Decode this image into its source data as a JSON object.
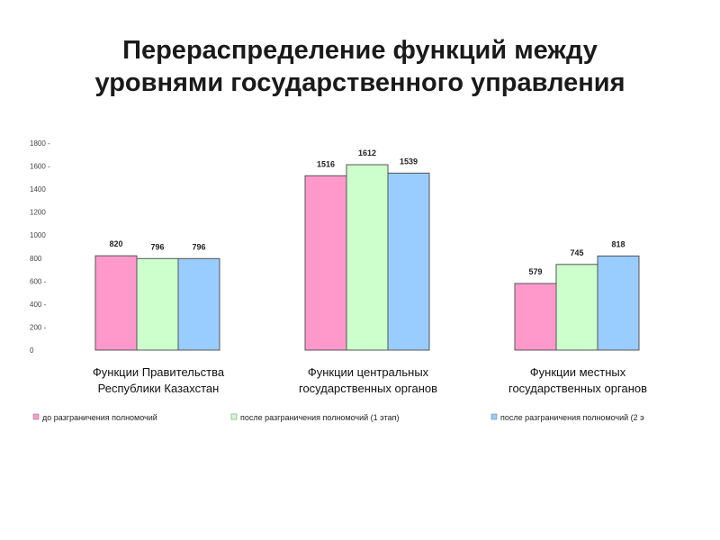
{
  "title": {
    "line1": "Перераспределение функций между",
    "line2": "уровнями государственного управления"
  },
  "chart_data": {
    "type": "bar",
    "categories": [
      [
        "Функции Правительства",
        "Республики Казахстан"
      ],
      [
        "Функции центральных",
        "государственных органов"
      ],
      [
        "Функции местных",
        "государственных органов"
      ]
    ],
    "series": [
      {
        "name": "до разграничения полномочий",
        "values": [
          820,
          1516,
          579
        ],
        "color": "#ff99cc"
      },
      {
        "name": "после разграничения полномочий (1 этап)",
        "values": [
          796,
          1612,
          745
        ],
        "color": "#ccffcc"
      },
      {
        "name": "после разграничения полномочий (2 э",
        "values": [
          796,
          1539,
          818
        ],
        "color": "#99ccff"
      }
    ],
    "ylim": [
      0,
      1800
    ],
    "yticks": [
      "0",
      "200 -",
      "400 -",
      "600 -",
      "800",
      "1000",
      "1200",
      "1400",
      "1600 -",
      "1800 -"
    ],
    "legend_position": "bottom",
    "grid": false
  }
}
